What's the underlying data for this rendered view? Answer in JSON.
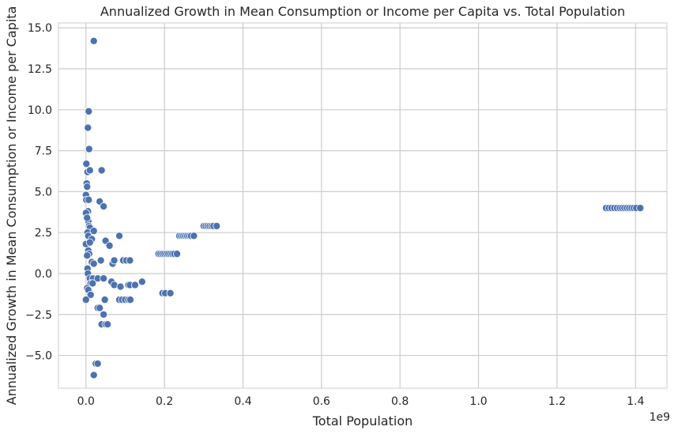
{
  "chart_data": {
    "type": "scatter",
    "title": "Annualized Growth in Mean Consumption or Income per Capita vs. Total Population",
    "xlabel": "Total Population",
    "ylabel": "Annualized Growth in Mean Consumption or Income per Capita",
    "x_offset_label": "1e9",
    "xlim": [
      -0.07,
      1.48
    ],
    "ylim": [
      -7.0,
      15.3
    ],
    "xticks": [
      0.0,
      0.2,
      0.4,
      0.6,
      0.8,
      1.0,
      1.2,
      1.4
    ],
    "xtick_labels": [
      "0.0",
      "0.2",
      "0.4",
      "0.6",
      "0.8",
      "1.0",
      "1.2",
      "1.4"
    ],
    "yticks": [
      -5.0,
      -2.5,
      0.0,
      2.5,
      5.0,
      7.5,
      10.0,
      12.5,
      15.0
    ],
    "ytick_labels": [
      "−5.0",
      "−2.5",
      "0.0",
      "2.5",
      "5.0",
      "7.5",
      "10.0",
      "12.5",
      "15.0"
    ],
    "grid": true,
    "colors": {
      "point": "#4c72b0",
      "point_edge": "#ffffff",
      "grid": "#cccccc",
      "text": "#262626"
    },
    "points": [
      [
        0.02,
        14.2
      ],
      [
        0.007,
        9.9
      ],
      [
        0.005,
        8.9
      ],
      [
        0.008,
        7.6
      ],
      [
        0.001,
        6.7
      ],
      [
        0.004,
        6.2
      ],
      [
        0.01,
        6.3
      ],
      [
        0.04,
        6.3
      ],
      [
        0.002,
        5.5
      ],
      [
        0.003,
        5.3
      ],
      [
        0.0,
        4.8
      ],
      [
        0.001,
        4.5
      ],
      [
        0.007,
        4.5
      ],
      [
        0.035,
        4.4
      ],
      [
        0.045,
        4.1
      ],
      [
        0.005,
        3.8
      ],
      [
        0.0,
        3.7
      ],
      [
        0.006,
        3.2
      ],
      [
        0.003,
        3.4
      ],
      [
        0.008,
        2.9
      ],
      [
        0.01,
        2.8
      ],
      [
        0.004,
        2.5
      ],
      [
        0.006,
        2.3
      ],
      [
        0.02,
        2.6
      ],
      [
        0.015,
        2.1
      ],
      [
        0.05,
        2.0
      ],
      [
        0.085,
        2.3
      ],
      [
        0.06,
        1.7
      ],
      [
        0.0,
        1.8
      ],
      [
        0.01,
        1.9
      ],
      [
        0.006,
        1.4
      ],
      [
        0.008,
        1.2
      ],
      [
        0.003,
        1.1
      ],
      [
        0.015,
        0.7
      ],
      [
        0.02,
        0.6
      ],
      [
        0.038,
        0.8
      ],
      [
        0.068,
        0.6
      ],
      [
        0.072,
        0.8
      ],
      [
        0.095,
        0.8
      ],
      [
        0.103,
        0.8
      ],
      [
        0.112,
        0.8
      ],
      [
        0.004,
        0.3
      ],
      [
        0.005,
        0.0
      ],
      [
        0.01,
        -0.3
      ],
      [
        0.018,
        -0.3
      ],
      [
        0.03,
        -0.3
      ],
      [
        0.045,
        -0.3
      ],
      [
        0.012,
        -0.6
      ],
      [
        0.017,
        -0.6
      ],
      [
        0.065,
        -0.5
      ],
      [
        0.072,
        -0.7
      ],
      [
        0.088,
        -0.8
      ],
      [
        0.108,
        -0.7
      ],
      [
        0.112,
        -0.7
      ],
      [
        0.125,
        -0.7
      ],
      [
        0.143,
        -0.5
      ],
      [
        0.003,
        -0.9
      ],
      [
        0.006,
        -1.0
      ],
      [
        0.012,
        -1.3
      ],
      [
        0.0,
        -1.6
      ],
      [
        0.048,
        -1.6
      ],
      [
        0.085,
        -1.6
      ],
      [
        0.092,
        -1.6
      ],
      [
        0.1,
        -1.6
      ],
      [
        0.108,
        -1.6
      ],
      [
        0.113,
        -1.6
      ],
      [
        0.195,
        -1.2
      ],
      [
        0.202,
        -1.2
      ],
      [
        0.215,
        -1.2
      ],
      [
        0.03,
        -2.1
      ],
      [
        0.035,
        -2.1
      ],
      [
        0.045,
        -2.5
      ],
      [
        0.04,
        -3.1
      ],
      [
        0.05,
        -3.1
      ],
      [
        0.055,
        -3.1
      ],
      [
        0.025,
        -5.5
      ],
      [
        0.03,
        -5.5
      ],
      [
        0.02,
        -6.2
      ],
      [
        0.185,
        1.2
      ],
      [
        0.19,
        1.2
      ],
      [
        0.195,
        1.2
      ],
      [
        0.2,
        1.2
      ],
      [
        0.205,
        1.2
      ],
      [
        0.21,
        1.2
      ],
      [
        0.215,
        1.2
      ],
      [
        0.22,
        1.2
      ],
      [
        0.225,
        1.2
      ],
      [
        0.232,
        1.2
      ],
      [
        0.238,
        2.3
      ],
      [
        0.243,
        2.3
      ],
      [
        0.248,
        2.3
      ],
      [
        0.253,
        2.3
      ],
      [
        0.258,
        2.3
      ],
      [
        0.263,
        2.3
      ],
      [
        0.268,
        2.3
      ],
      [
        0.275,
        2.3
      ],
      [
        0.3,
        2.9
      ],
      [
        0.305,
        2.9
      ],
      [
        0.31,
        2.9
      ],
      [
        0.315,
        2.9
      ],
      [
        0.32,
        2.9
      ],
      [
        0.325,
        2.9
      ],
      [
        0.333,
        2.9
      ],
      [
        1.325,
        4.0
      ],
      [
        1.332,
        4.0
      ],
      [
        1.339,
        4.0
      ],
      [
        1.346,
        4.0
      ],
      [
        1.353,
        4.0
      ],
      [
        1.36,
        4.0
      ],
      [
        1.366,
        4.0
      ],
      [
        1.372,
        4.0
      ],
      [
        1.378,
        4.0
      ],
      [
        1.384,
        4.0
      ],
      [
        1.39,
        4.0
      ],
      [
        1.396,
        4.0
      ],
      [
        1.402,
        4.0
      ],
      [
        1.412,
        4.0
      ]
    ]
  }
}
